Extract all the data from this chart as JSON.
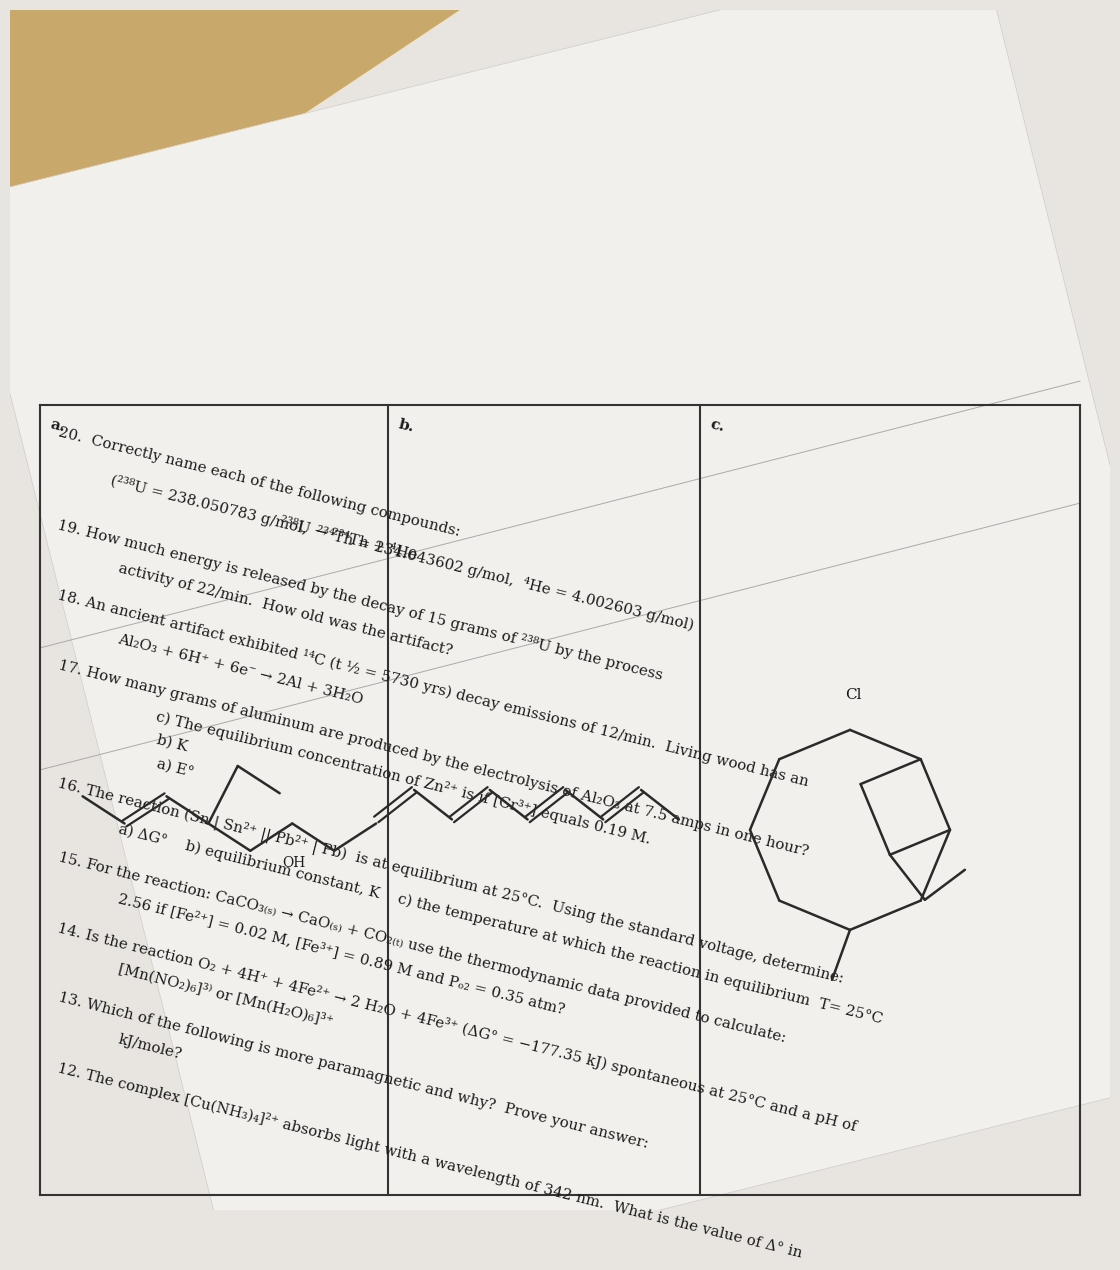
{
  "bg_top_color": "#c8a86b",
  "bg_color": "#e8e5e0",
  "paper_color": "#f2f0ec",
  "text_color": "#1a1a1a",
  "body_fontsize": 10.8,
  "rotation_deg": 14.0,
  "questions": [
    {
      "num": "12.",
      "lines": [
        "12. The complex [Cu(NH₃)₄]²⁺ absorbs light with a wavelength of 342 nm.  What is the value of Δ° in",
        "kJ/mole?"
      ]
    },
    {
      "num": "13.",
      "lines": [
        "13. Which of the following is more paramagnetic and why?  Prove your answer:",
        "[Mn(NO₂)₆]³⁾ or [Mn(H₂O)₆]³⁺"
      ]
    },
    {
      "num": "14.",
      "lines": [
        "14. Is the reaction O₂ + 4H⁺ + 4Fe²⁺ → 2 H₂O + 4Fe³⁺ (ΔG° = −177.35 kJ) spontaneous at 25°C and a pH of",
        "2.56 if [Fe²⁺] = 0.02 M, [Fe³⁺] = 0.89 M and Pₒ₂ = 0.35 atm?"
      ]
    },
    {
      "num": "15.",
      "lines": [
        "15. For the reaction: CaCO₃₍ₛ₎ → CaO₍ₛ₎ + CO₂₍ₜ₎ use the thermodynamic data provided to calculate:",
        "a) ΔG°    b) equilibrium constant, K    c) the temperature at which the reaction in equilibrium  T= 25°C"
      ]
    },
    {
      "num": "16.",
      "lines": [
        "16. The reaction (Sn | Sn²⁺ || Pb²⁺ | Pb)  is at equilibrium at 25°C.  Using the standard voltage, determine:",
        "    a) E°",
        "    b) K",
        "    c) The equilibrium concentration of Zn²⁺ is if [Cr³⁺] equals 0.19 M."
      ]
    },
    {
      "num": "17.",
      "lines": [
        "17. How many grams of aluminum are produced by the electrolysis of Al₂O₃ at 7.5 amps in one hour?",
        "Al₂O₃ + 6H⁺ + 6e⁻ → 2Al + 3H₂O"
      ]
    },
    {
      "num": "18.",
      "lines": [
        "18. An ancient artifact exhibited ¹⁴C (t ½ = 5730 yrs) decay emissions of 12/min.  Living wood has an",
        "activity of 22/min.  How old was the artifact?"
      ]
    },
    {
      "num": "19.",
      "lines": [
        "19. How much energy is released by the decay of 15 grams of ²³⁸U by the process",
        "                    ²³⁸U → ²³⁴Th + ⁴He",
        "     (²³⁸U = 238.050783 g/mol,  ²³⁴Th = 234.043602 g/mol,  ⁴He = 4.002603 g/mol)"
      ]
    },
    {
      "num": "20.",
      "lines": [
        "20.  Correctly name each of the following compounds:"
      ]
    }
  ],
  "cell_a_label": "a.",
  "cell_b_label": "b.",
  "cell_c_label": "c.",
  "oh_label": "OH",
  "cl_label": "Cl"
}
